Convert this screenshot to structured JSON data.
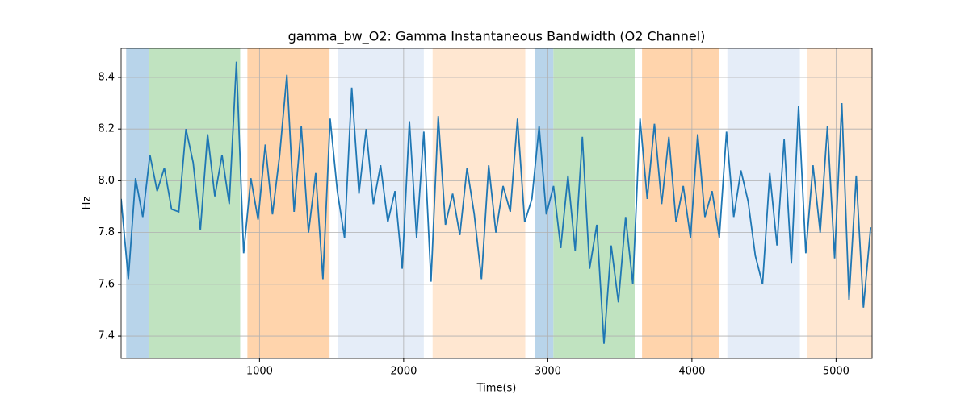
{
  "chart_data": {
    "type": "line",
    "title": "gamma_bw_O2: Gamma Instantaneous Bandwidth (O2 Channel)",
    "xlabel": "Time(s)",
    "ylabel": "Hz",
    "xlim": [
      40,
      5250
    ],
    "ylim": [
      7.313,
      8.512
    ],
    "xticks": [
      1000,
      2000,
      3000,
      4000,
      5000
    ],
    "yticks": [
      7.4,
      7.6,
      7.8,
      {
        "value": 8.0,
        "label": "8.0"
      },
      8.2,
      8.4
    ],
    "grid": true,
    "spans": [
      {
        "start": 75,
        "end": 232,
        "color": "#b8d4ea"
      },
      {
        "start": 232,
        "end": 866,
        "color": "#c0e3c0"
      },
      {
        "start": 916,
        "end": 1486,
        "color": "#ffd4ac"
      },
      {
        "start": 1542,
        "end": 2140,
        "color": "#e5edf8"
      },
      {
        "start": 2201,
        "end": 2844,
        "color": "#ffe7d1"
      },
      {
        "start": 2911,
        "end": 3039,
        "color": "#b8d4ea"
      },
      {
        "start": 3039,
        "end": 3603,
        "color": "#c0e3c0"
      },
      {
        "start": 3654,
        "end": 4190,
        "color": "#ffd4ac"
      },
      {
        "start": 4246,
        "end": 4749,
        "color": "#e5edf8"
      },
      {
        "start": 4799,
        "end": 5250,
        "color": "#ffe7d1"
      }
    ],
    "x": [
      40,
      90,
      140,
      190,
      240,
      290,
      340,
      390,
      440,
      490,
      540,
      590,
      640,
      690,
      740,
      790,
      840,
      890,
      940,
      990,
      1040,
      1090,
      1140,
      1190,
      1240,
      1290,
      1340,
      1390,
      1440,
      1490,
      1540,
      1590,
      1640,
      1690,
      1740,
      1790,
      1840,
      1890,
      1940,
      1990,
      2040,
      2090,
      2140,
      2190,
      2240,
      2290,
      2340,
      2390,
      2440,
      2490,
      2540,
      2590,
      2640,
      2690,
      2740,
      2790,
      2840,
      2890,
      2940,
      2990,
      3040,
      3090,
      3140,
      3190,
      3240,
      3290,
      3340,
      3390,
      3440,
      3490,
      3540,
      3590,
      3640,
      3690,
      3740,
      3790,
      3840,
      3890,
      3940,
      3990,
      4040,
      4090,
      4140,
      4190,
      4240,
      4290,
      4340,
      4390,
      4440,
      4490,
      4540,
      4590,
      4640,
      4690,
      4740,
      4790,
      4840,
      4890,
      4940,
      4990,
      5040,
      5090,
      5140,
      5190,
      5240
    ],
    "series": [
      {
        "name": "gamma_bw_O2",
        "color": "#1f77b4",
        "values": [
          7.93,
          7.62,
          8.01,
          7.86,
          8.1,
          7.96,
          8.05,
          7.89,
          7.88,
          8.2,
          8.07,
          7.81,
          8.18,
          7.94,
          8.1,
          7.91,
          8.46,
          7.72,
          8.01,
          7.85,
          8.14,
          7.87,
          8.1,
          8.41,
          7.88,
          8.21,
          7.8,
          8.03,
          7.62,
          8.24,
          7.96,
          7.78,
          8.36,
          7.95,
          8.2,
          7.91,
          8.06,
          7.84,
          7.96,
          7.66,
          8.23,
          7.78,
          8.19,
          7.61,
          8.25,
          7.83,
          7.95,
          7.79,
          8.05,
          7.87,
          7.62,
          8.06,
          7.8,
          7.98,
          7.88,
          8.24,
          7.84,
          7.93,
          8.21,
          7.87,
          7.98,
          7.74,
          8.02,
          7.73,
          8.17,
          7.66,
          7.83,
          7.37,
          7.75,
          7.53,
          7.86,
          7.6,
          8.24,
          7.93,
          8.22,
          7.91,
          8.17,
          7.84,
          7.98,
          7.78,
          8.18,
          7.86,
          7.96,
          7.78,
          8.19,
          7.86,
          8.04,
          7.92,
          7.71,
          7.6,
          8.03,
          7.75,
          8.16,
          7.68,
          8.29,
          7.72,
          8.06,
          7.8,
          8.21,
          7.7,
          8.3,
          7.54,
          8.02,
          7.51,
          7.82
        ]
      }
    ]
  }
}
